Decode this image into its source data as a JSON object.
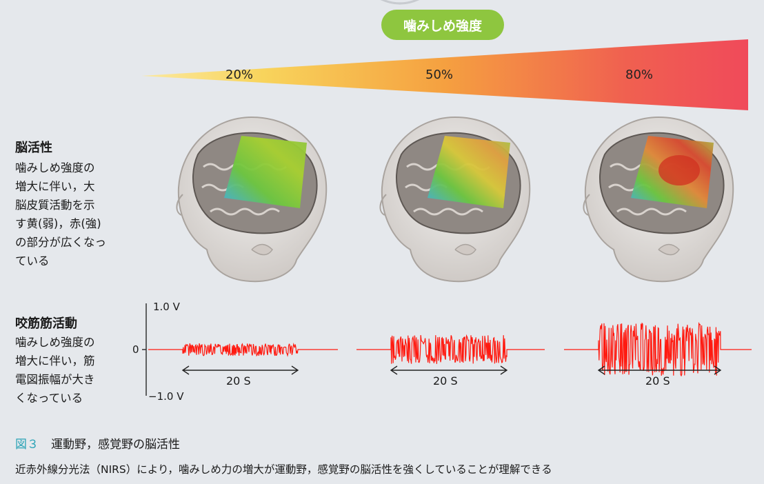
{
  "intensity_label": "噛みしめ強度",
  "levels": [
    "20%",
    "50%",
    "80%"
  ],
  "brain": {
    "title": "脳活性",
    "description": "噛みしめ強度の\n増大に伴い，大\n脳皮質活動を示\nす黄(弱)，赤(強)\nの部分が広くなっ\nている"
  },
  "muscle": {
    "title": "咬筋筋活動",
    "description": "噛みしめ強度の\n増大に伴い，筋\n電図振幅が大き\nくなっている"
  },
  "emg": {
    "y_max_label": "1.0 V",
    "y_zero_label": "0",
    "y_min_label": "−1.0 V",
    "duration_label": "20 S",
    "amplitude_levels": [
      0.14,
      0.32,
      0.58
    ]
  },
  "caption": {
    "figure_number": "図３",
    "title": "運動野，感覚野の脳活性",
    "text": "近赤外線分光法（NIRS）により，噛みしめ力の増大が運動野，感覚野の脳活性を強くしていることが理解できる"
  },
  "colors": {
    "pill": "#8ec63f",
    "gradient_start": "#f8e08a",
    "gradient_end": "#f04a5a",
    "emg_signal": "#ff1a10",
    "caption_accent": "#2aa3b6"
  }
}
